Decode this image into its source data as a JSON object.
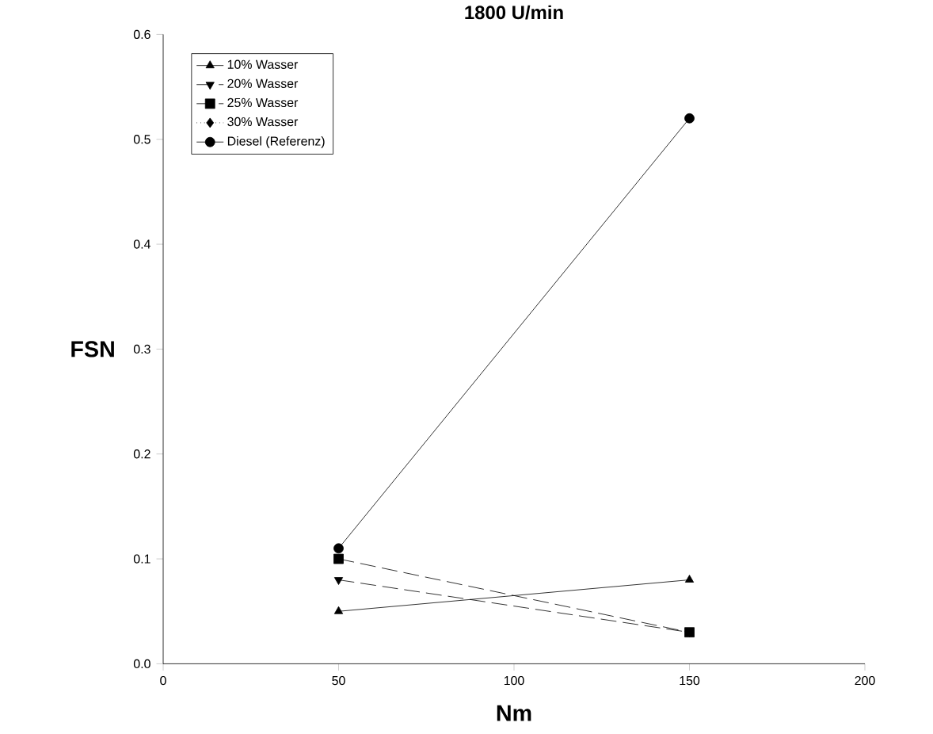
{
  "chart_data": {
    "type": "line",
    "title": "1800 U/min",
    "xlabel": "Nm",
    "ylabel": "FSN",
    "x": [
      50,
      150
    ],
    "series": [
      {
        "name": "10% Wasser",
        "color": "#000000",
        "marker": "triangle",
        "line_style": "solid",
        "values": [
          0.05,
          0.08
        ]
      },
      {
        "name": "20% Wasser",
        "color": "#000000",
        "marker": "triangle-down",
        "line_style": "dashed",
        "values": [
          0.08,
          0.03
        ]
      },
      {
        "name": "25% Wasser",
        "color": "#000000",
        "marker": "square",
        "line_style": "dashed",
        "values": [
          0.1,
          0.03
        ]
      },
      {
        "name": "30% Wasser",
        "color": "#000000",
        "marker": "diamond",
        "line_style": "dotted",
        "values": [
          null,
          null
        ]
      },
      {
        "name": "Diesel (Referenz)",
        "color": "#000000",
        "marker": "circle",
        "line_style": "solid",
        "values": [
          0.11,
          0.52
        ]
      }
    ],
    "xlim": [
      0,
      200
    ],
    "xticks": [
      0,
      50,
      100,
      150,
      200
    ],
    "ylim": [
      0,
      0.6
    ],
    "yticks": [
      {
        "value": 0,
        "label": "0.0"
      },
      {
        "value": 0.1,
        "label": "0.1"
      },
      {
        "value": 0.2,
        "label": "0.2"
      },
      {
        "value": 0.3,
        "label": "0.3"
      },
      {
        "value": 0.4,
        "label": "0.4"
      },
      {
        "value": 0.5,
        "label": "0.5"
      },
      {
        "value": 0.6,
        "label": "0.6"
      }
    ],
    "grid": false,
    "legend": "top left"
  }
}
